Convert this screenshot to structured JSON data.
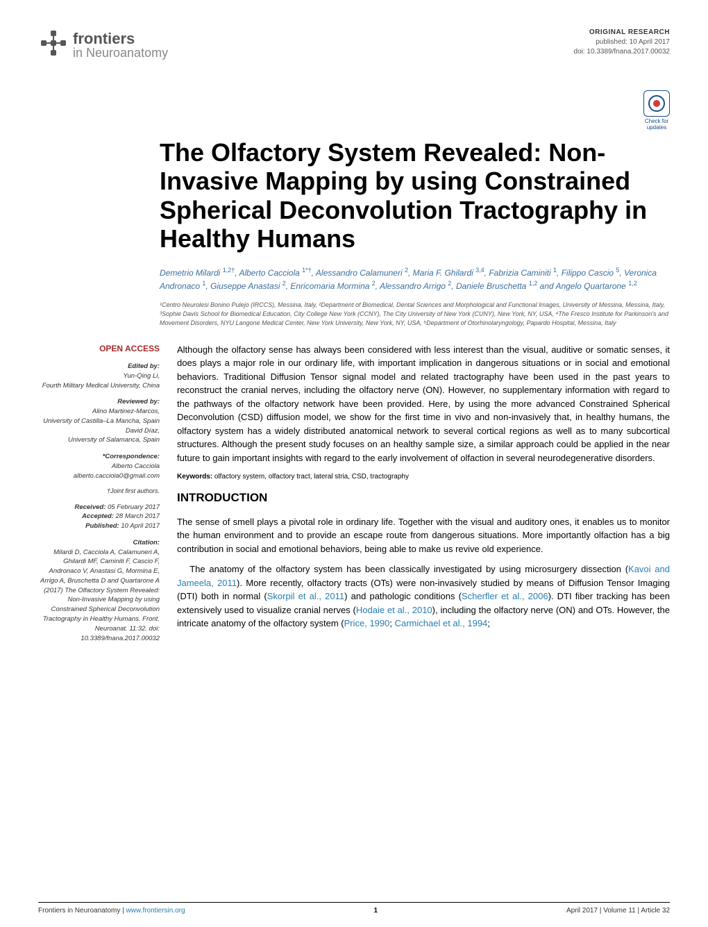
{
  "header": {
    "brand": "frontiers",
    "journal": "in Neuroanatomy",
    "article_type": "ORIGINAL RESEARCH",
    "published_line": "published: 10 April 2017",
    "doi_line": "doi: 10.3389/fnana.2017.00032",
    "check_updates_line1": "Check for",
    "check_updates_line2": "updates"
  },
  "title": "The Olfactory System Revealed: Non-Invasive Mapping by using Constrained Spherical Deconvolution Tractography in Healthy Humans",
  "authors_html": "Demetrio Milardi <sup>1,2†</sup>, Alberto Cacciola <sup>1*†</sup>, Alessandro Calamuneri <sup>2</sup>, Maria F. Ghilardi <sup>3,4</sup>, Fabrizia Caminiti <sup>1</sup>, Filippo Cascio <sup>5</sup>, Veronica Andronaco <sup>1</sup>, Giuseppe Anastasi <sup>2</sup>, Enricomaria Mormina <sup>2</sup>, Alessandro Arrigo <sup>2</sup>, Daniele Bruschetta <sup>1,2</sup> and Angelo Quartarone <sup>1,2</sup>",
  "affiliations": "¹Centro Neurolesi Bonino Pulejo (IRCCS), Messina, Italy, ²Department of Biomedical, Dental Sciences and Morphological and Functional Images, University of Messina, Messina, Italy, ³Sophie Davis School for Biomedical Education, City College New York (CCNY), The City University of New York (CUNY), New York, NY, USA, ⁴The Fresco Institute for Parkinson's and Movement Disorders, NYU Langone Medical Center, New York University, New York, NY, USA, ⁵Department of Otorhinolaryngology, Papardo Hospital, Messina, Italy",
  "sidebar": {
    "open_access": "OPEN ACCESS",
    "edited_by_label": "Edited by:",
    "edited_by_name": "Yun-Qing Li,",
    "edited_by_affil": "Fourth Military Medical University, China",
    "reviewed_by_label": "Reviewed by:",
    "reviewer1_name": "Alino Martinez-Marcos,",
    "reviewer1_affil": "University of Castilla–La Mancha, Spain",
    "reviewer2_name": "David Díaz,",
    "reviewer2_affil": "University of Salamanca, Spain",
    "correspondence_label": "*Correspondence:",
    "correspondence_name": "Alberto Cacciola",
    "correspondence_email": "alberto.cacciola0@gmail.com",
    "joint_note": "†Joint first authors.",
    "received_label": "Received:",
    "received_date": " 05 February 2017",
    "accepted_label": "Accepted:",
    "accepted_date": " 28 March 2017",
    "published_label": "Published:",
    "published_date": " 10 April 2017",
    "citation_label": "Citation:",
    "citation_text": "Milardi D, Cacciola A, Calamuneri A, Ghilardi MF, Caminiti F, Cascio F, Andronaco V, Anastasi G, Mormina E, Arrigo A, Bruschetta D and Quartarone A (2017) The Olfactory System Revealed: Non-Invasive Mapping by using Constrained Spherical Deconvolution Tractography in Healthy Humans. Front. Neuroanat. 11:32. doi: 10.3389/fnana.2017.00032"
  },
  "abstract": "Although the olfactory sense has always been considered with less interest than the visual, auditive or somatic senses, it does plays a major role in our ordinary life, with important implication in dangerous situations or in social and emotional behaviors. Traditional Diffusion Tensor signal model and related tractography have been used in the past years to reconstruct the cranial nerves, including the olfactory nerve (ON). However, no supplementary information with regard to the pathways of the olfactory network have been provided. Here, by using the more advanced Constrained Spherical Deconvolution (CSD) diffusion model, we show for the first time in vivo and non-invasively that, in healthy humans, the olfactory system has a widely distributed anatomical network to several cortical regions as well as to many subcortical structures. Although the present study focuses on an healthy sample size, a similar approach could be applied in the near future to gain important insights with regard to the early involvement of olfaction in several neurodegenerative disorders.",
  "keywords_label": "Keywords:",
  "keywords": " olfactory system, olfactory tract, lateral stria, CSD, tractography",
  "intro_heading": "INTRODUCTION",
  "intro_p1": "The sense of smell plays a pivotal role in ordinary life. Together with the visual and auditory ones, it enables us to monitor the human environment and to provide an escape route from dangerous situations. More importantly olfaction has a big contribution in social and emotional behaviors, being able to make us revive old experience.",
  "intro_p2_pre": "The anatomy of the olfactory system has been classically investigated by using microsurgery dissection (",
  "intro_p2_ref1": "Kavoi and Jameela, 2011",
  "intro_p2_mid1": "). More recently, olfactory tracts (OTs) were non-invasively studied by means of Diffusion Tensor Imaging (DTI) both in normal (",
  "intro_p2_ref2": "Skorpil et al., 2011",
  "intro_p2_mid2": ") and pathologic conditions (",
  "intro_p2_ref3": "Scherfler et al., 2006",
  "intro_p2_mid3": "). DTI fiber tracking has been extensively used to visualize cranial nerves (",
  "intro_p2_ref4": "Hodaie et al., 2010",
  "intro_p2_mid4": "), including the olfactory nerve (ON) and OTs. However, the intricate anatomy of the olfactory system (",
  "intro_p2_ref5": "Price, 1990",
  "intro_p2_sep": "; ",
  "intro_p2_ref6": "Carmichael et al., 1994",
  "intro_p2_end": ";",
  "footer": {
    "left_journal": "Frontiers in Neuroanatomy",
    "left_sep": " | ",
    "left_site": "www.frontiersin.org",
    "page": "1",
    "right": "April 2017 | Volume 11 | Article 32"
  },
  "colors": {
    "brand_gray": "#555555",
    "journal_gray": "#888888",
    "author_blue": "#3a6fa0",
    "ref_blue": "#277db3",
    "open_access_red": "#a82a2a",
    "badge_blue": "#1a4a8a"
  }
}
